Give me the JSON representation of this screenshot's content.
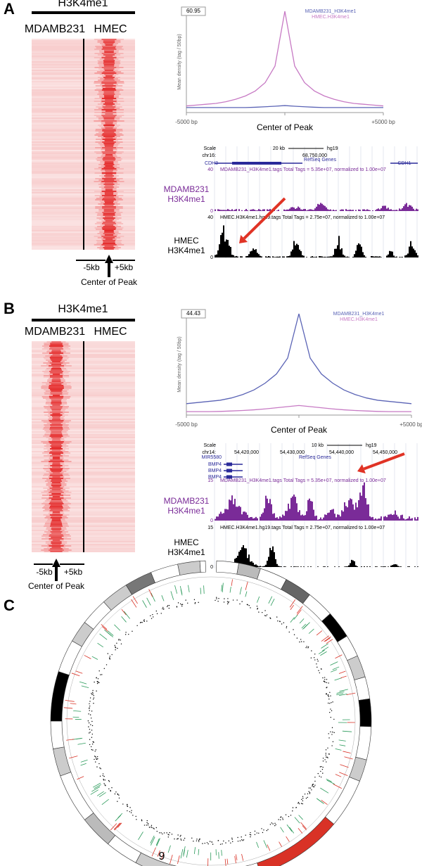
{
  "panels": [
    {
      "letter": "A",
      "heatmap": {
        "title": "H3K4me1",
        "columns": [
          "MDAMB231",
          "HMEC"
        ],
        "left": "-5kb",
        "right": "+5kb",
        "center": "Center of Peak"
      },
      "profile": {
        "type": "line",
        "ylabel": "Mean density (tag / 50bp)",
        "x": [
          -5000,
          -4500,
          -4000,
          -3500,
          -3000,
          -2500,
          -2000,
          -1500,
          -1000,
          -500,
          0,
          500,
          1000,
          1500,
          2000,
          2500,
          3000,
          3500,
          4000,
          4500,
          5000
        ],
        "xlim": [
          -5000,
          5000
        ],
        "xticks": [
          {
            "value": -5000,
            "label": "-5000 bp"
          },
          {
            "value": 0,
            "label": "Center of Peak"
          },
          {
            "value": 5000,
            "label": "+5000 bp"
          }
        ],
        "ylim": [
          0,
          60.95
        ],
        "yticks": [
          60.95
        ],
        "series": [
          {
            "name": "MDAMB231_H3K4me1",
            "color": "#5a63b5",
            "values": [
              3,
              3,
              3,
              3,
              3,
              3,
              3,
              3.2,
              3.5,
              3.8,
              4.2,
              3.8,
              3.5,
              3.2,
              3,
              3,
              3,
              3,
              3,
              3,
              3
            ]
          },
          {
            "name": "HMEC.H3K4me1",
            "color": "#c77ac4",
            "values": [
              4,
              4.5,
              5,
              5.5,
              6.5,
              8,
              10,
              13,
              18,
              28,
              60.95,
              28,
              18,
              13,
              10,
              8,
              6.5,
              5.5,
              5,
              4.5,
              4
            ]
          }
        ]
      },
      "browser": {
        "scale": "Scale",
        "chrom": "chr16:",
        "span": "20 kb",
        "build": "hg19",
        "positions": [
          "68,750,000"
        ],
        "genes": [
          "CDH3",
          "RefSeq Genes",
          "CDH1"
        ],
        "track1": {
          "max": "40",
          "min": "0",
          "desc": "MDAMB231_H3K4me1.tags Total Tags = 5.35e+07, normalized to 1.00e+07",
          "label": [
            "MDAMB231",
            "H3K4me1"
          ]
        },
        "track2": {
          "max": "40",
          "min": "0",
          "desc": "HMEC.H3K4me1.hg19.tags Total Tags = 2.75e+07, normalized to 1.00e+07",
          "label": [
            "HMEC",
            "H3K4me1"
          ]
        }
      }
    },
    {
      "letter": "B",
      "heatmap": {
        "title": "H3K4me1",
        "columns": [
          "MDAMB231",
          "HMEC"
        ],
        "left": "-5kb",
        "right": "+5kb",
        "center": "Center of Peak"
      },
      "profile": {
        "type": "line",
        "ylabel": "Mean density (tag / 50bp)",
        "x": [
          -5000,
          -4500,
          -4000,
          -3500,
          -3000,
          -2500,
          -2000,
          -1500,
          -1000,
          -500,
          0,
          500,
          1000,
          1500,
          2000,
          2500,
          3000,
          3500,
          4000,
          4500,
          5000
        ],
        "xlim": [
          -5000,
          5000
        ],
        "xticks": [
          {
            "value": -5000,
            "label": "-5000 bp"
          },
          {
            "value": 0,
            "label": "Center of Peak"
          },
          {
            "value": 5000,
            "label": "+5000 bp"
          }
        ],
        "ylim": [
          0,
          44.43
        ],
        "yticks": [
          44.43
        ],
        "series": [
          {
            "name": "MDAMB231_H3K4me1",
            "color": "#5a63b5",
            "values": [
              5,
              5.5,
              6,
              6.5,
              7.5,
              9,
              11,
              14,
              18,
              25,
              44.43,
              25,
              18,
              14,
              11,
              9,
              7.5,
              6.5,
              6,
              5.5,
              5
            ]
          },
          {
            "name": "HMEC.H3K4me1",
            "color": "#c77ac4",
            "values": [
              1.5,
              1.5,
              1.5,
              1.6,
              1.8,
              2,
              2.3,
              2.7,
              3.2,
              3.7,
              4.2,
              3.7,
              3.2,
              2.7,
              2.3,
              2,
              1.8,
              1.6,
              1.5,
              1.5,
              1.5
            ]
          }
        ]
      },
      "browser": {
        "scale": "Scale",
        "chrom": "chr14:",
        "span": "10 kb",
        "build": "hg19",
        "positions": [
          "54,420,000",
          "54,430,000",
          "54,440,000",
          "54,450,000"
        ],
        "genes": [
          "MIR5580",
          "BMP4",
          "BMP4",
          "BMP4",
          "RefSeq Genes"
        ],
        "track1": {
          "max": "15",
          "min": "0",
          "desc": "MDAMB231_H3K4me1.tags Total Tags = 5.35e+07, normalized to 1.00e+07",
          "label": [
            "MDAMB231",
            "H3K4me1"
          ]
        },
        "track2": {
          "max": "15",
          "min": "0",
          "desc": "HMEC.H3K4me1.hg19.tags Total Tags = 2.75e+07, normalized to 1.00e+07",
          "label": [
            "HMEC",
            "H3K4me1"
          ]
        }
      }
    },
    {
      "letter": "C"
    }
  ],
  "page_number": "9"
}
